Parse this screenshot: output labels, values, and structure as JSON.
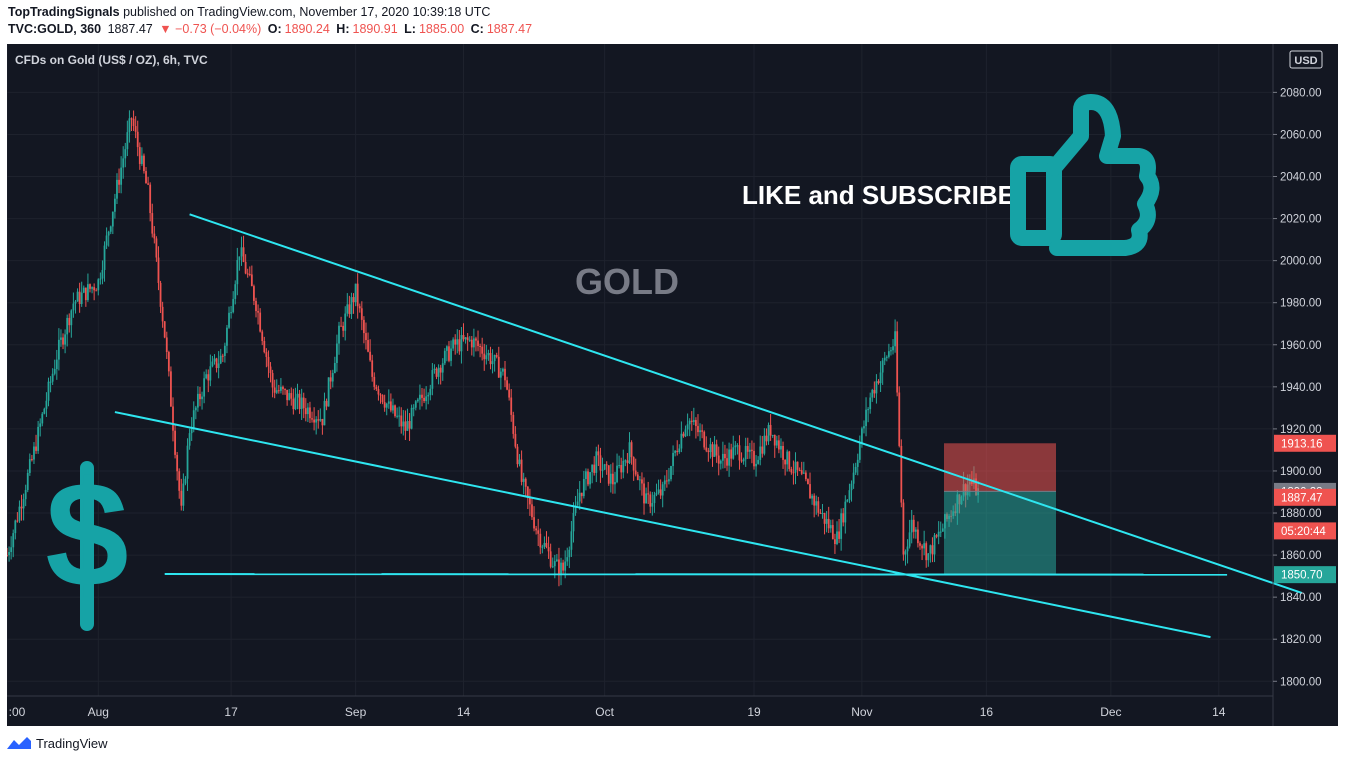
{
  "header": {
    "author": "TopTradingSignals",
    "published": "published on TradingView.com, November 17, 2020 10:39:18 UTC",
    "symbol": "TVC:GOLD, 360",
    "last": "1887.47",
    "change": "▼ −0.73 (−0.04%)",
    "o_label": "O:",
    "o": "1890.24",
    "h_label": "H:",
    "h": "1890.91",
    "l_label": "L:",
    "l": "1885.00",
    "c_label": "C:",
    "c": "1887.47"
  },
  "chart": {
    "title": "CFDs on Gold (US$ / OZ), 6h, TVC",
    "currency": "USD",
    "watermark": "GOLD",
    "promo": "LIKE and SUBSCRIBE",
    "price_tags": [
      {
        "label": "1913.16",
        "value": 1913.16,
        "color": "#ef5350"
      },
      {
        "label": "1890.28",
        "value": 1890.28,
        "color": "#787b86"
      },
      {
        "label": "1887.47",
        "value": 1887.47,
        "color": "#ef5350"
      },
      {
        "label": "05:20:44",
        "value": 1871.5,
        "color": "#ef5350"
      },
      {
        "label": "1850.70",
        "value": 1850.7,
        "color": "#26a69a"
      }
    ]
  },
  "chart_data": {
    "type": "candlestick",
    "symbol": "TVC:GOLD",
    "interval": "6h",
    "y_ticks": [
      1800,
      1820,
      1840,
      1860,
      1880,
      1900,
      1920,
      1940,
      1960,
      1980,
      2000,
      2020,
      2040,
      2060,
      2080
    ],
    "y_tick_labels": [
      "1800.00",
      "1820.00",
      "1840.00",
      "1860.00",
      "1880.00",
      "1900.00",
      "1920.00",
      "1940.00",
      "1960.00",
      "1980.00",
      "2000.00",
      "2020.00",
      "2040.00",
      "2060.00",
      "2080.00"
    ],
    "ylim": [
      1793,
      2103
    ],
    "x_ticks": [
      {
        "label": ":00",
        "day": 0
      },
      {
        "label": "Aug",
        "day": 11
      },
      {
        "label": "17",
        "day": 27
      },
      {
        "label": "Sep",
        "day": 42
      },
      {
        "label": "14",
        "day": 55
      },
      {
        "label": "Oct",
        "day": 72
      },
      {
        "label": "19",
        "day": 90
      },
      {
        "label": "Nov",
        "day": 103
      },
      {
        "label": "16",
        "day": 118
      },
      {
        "label": "Dec",
        "day": 133
      },
      {
        "label": "14",
        "day": 146
      }
    ],
    "price_path": [
      [
        0,
        1860
      ],
      [
        3,
        1905
      ],
      [
        6,
        1955
      ],
      [
        8,
        1980
      ],
      [
        11,
        1990
      ],
      [
        13,
        2030
      ],
      [
        15,
        2068
      ],
      [
        17,
        2032
      ],
      [
        19,
        1965
      ],
      [
        21,
        1880
      ],
      [
        22,
        1920
      ],
      [
        24,
        1945
      ],
      [
        26,
        1955
      ],
      [
        28,
        2005
      ],
      [
        30,
        1980
      ],
      [
        32,
        1940
      ],
      [
        34,
        1935
      ],
      [
        36,
        1930
      ],
      [
        38,
        1925
      ],
      [
        40,
        1965
      ],
      [
        42,
        1985
      ],
      [
        44,
        1945
      ],
      [
        46,
        1930
      ],
      [
        48,
        1920
      ],
      [
        50,
        1935
      ],
      [
        52,
        1950
      ],
      [
        54,
        1960
      ],
      [
        56,
        1962
      ],
      [
        58,
        1955
      ],
      [
        60,
        1945
      ],
      [
        62,
        1895
      ],
      [
        64,
        1870
      ],
      [
        66,
        1855
      ],
      [
        67,
        1853
      ],
      [
        69,
        1890
      ],
      [
        71,
        1905
      ],
      [
        73,
        1895
      ],
      [
        75,
        1910
      ],
      [
        77,
        1885
      ],
      [
        79,
        1890
      ],
      [
        81,
        1915
      ],
      [
        82,
        1925
      ],
      [
        84,
        1915
      ],
      [
        86,
        1905
      ],
      [
        88,
        1910
      ],
      [
        90,
        1905
      ],
      [
        92,
        1920
      ],
      [
        94,
        1905
      ],
      [
        96,
        1895
      ],
      [
        98,
        1880
      ],
      [
        100,
        1868
      ],
      [
        102,
        1900
      ],
      [
        104,
        1935
      ],
      [
        106,
        1955
      ],
      [
        107,
        1962
      ],
      [
        108,
        1860
      ],
      [
        109,
        1875
      ],
      [
        111,
        1860
      ],
      [
        113,
        1875
      ],
      [
        115,
        1890
      ],
      [
        116,
        1895
      ],
      [
        117,
        1890
      ]
    ],
    "trendlines": [
      {
        "name": "upper",
        "points": [
          [
            22,
            2022
          ],
          [
            156,
            1842
          ]
        ]
      },
      {
        "name": "lower",
        "points": [
          [
            13,
            1928
          ],
          [
            145,
            1821
          ]
        ]
      },
      {
        "name": "support",
        "points": [
          [
            19,
            1851
          ],
          [
            147,
            1850.7
          ]
        ]
      }
    ],
    "position": {
      "type": "short",
      "entry": 1890.28,
      "stop": 1913.16,
      "target": 1850.7
    }
  }
}
